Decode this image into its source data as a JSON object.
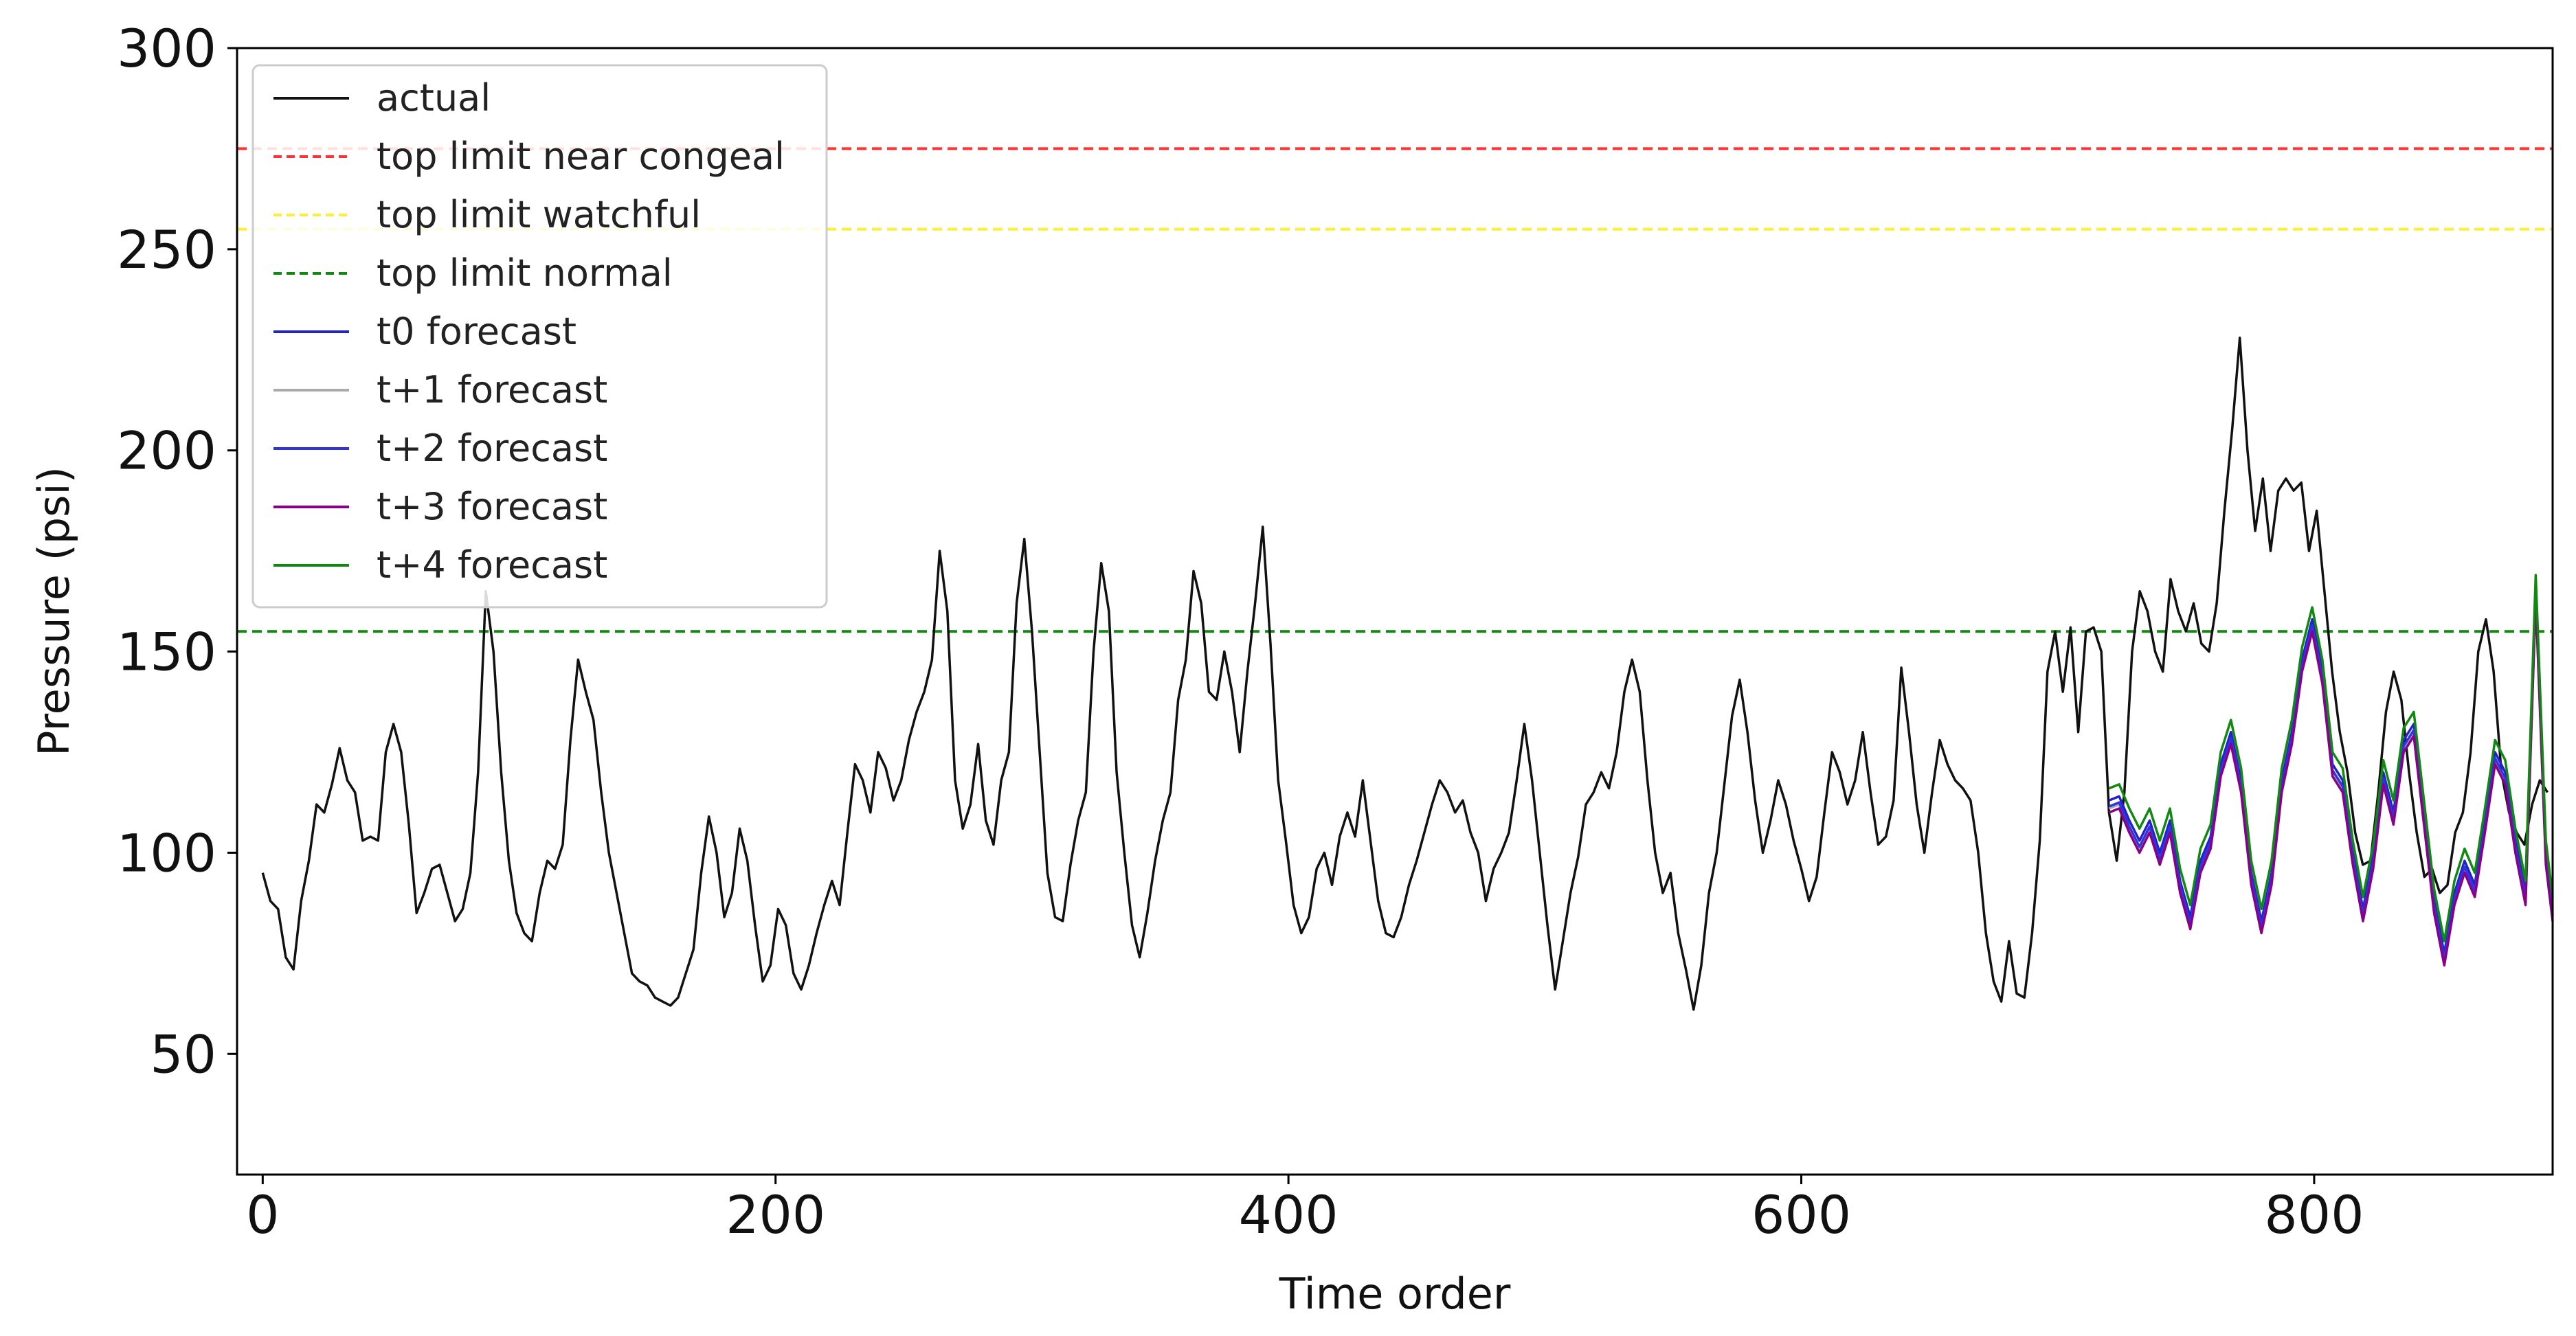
{
  "chart_data": {
    "type": "line",
    "xlabel": "Time order",
    "ylabel": "Pressure (psi)",
    "xlim": [
      -10,
      893
    ],
    "ylim": [
      20,
      300
    ],
    "x_ticks": [
      0,
      200,
      400,
      600,
      800
    ],
    "y_ticks": [
      50,
      100,
      150,
      200,
      250,
      300
    ],
    "grid": false,
    "legend_position": "top-left",
    "thresholds": [
      {
        "name": "top limit near congeal",
        "value": 275,
        "color": "#ff3333",
        "dash": true
      },
      {
        "name": "top limit watchful",
        "value": 255,
        "color": "#ffee33",
        "dash": true
      },
      {
        "name": "top limit normal",
        "value": 155,
        "color": "#118811",
        "dash": true
      }
    ],
    "actual": {
      "name": "actual",
      "color": "#111111",
      "points": [
        [
          0,
          95
        ],
        [
          3,
          88
        ],
        [
          6,
          86
        ],
        [
          9,
          74
        ],
        [
          12,
          71
        ],
        [
          15,
          88
        ],
        [
          18,
          98
        ],
        [
          21,
          112
        ],
        [
          24,
          110
        ],
        [
          27,
          117
        ],
        [
          30,
          126
        ],
        [
          33,
          118
        ],
        [
          36,
          115
        ],
        [
          39,
          103
        ],
        [
          42,
          104
        ],
        [
          45,
          103
        ],
        [
          48,
          125
        ],
        [
          51,
          132
        ],
        [
          54,
          125
        ],
        [
          57,
          107
        ],
        [
          60,
          85
        ],
        [
          63,
          90
        ],
        [
          66,
          96
        ],
        [
          69,
          97
        ],
        [
          72,
          90
        ],
        [
          75,
          83
        ],
        [
          78,
          86
        ],
        [
          81,
          95
        ],
        [
          84,
          120
        ],
        [
          87,
          165
        ],
        [
          90,
          150
        ],
        [
          93,
          120
        ],
        [
          96,
          98
        ],
        [
          99,
          85
        ],
        [
          102,
          80
        ],
        [
          105,
          78
        ],
        [
          108,
          90
        ],
        [
          111,
          98
        ],
        [
          114,
          96
        ],
        [
          117,
          102
        ],
        [
          120,
          128
        ],
        [
          123,
          148
        ],
        [
          126,
          140
        ],
        [
          129,
          133
        ],
        [
          132,
          115
        ],
        [
          135,
          100
        ],
        [
          138,
          90
        ],
        [
          141,
          80
        ],
        [
          144,
          70
        ],
        [
          147,
          68
        ],
        [
          150,
          67
        ],
        [
          153,
          64
        ],
        [
          156,
          63
        ],
        [
          159,
          62
        ],
        [
          162,
          64
        ],
        [
          165,
          70
        ],
        [
          168,
          76
        ],
        [
          171,
          95
        ],
        [
          174,
          109
        ],
        [
          177,
          100
        ],
        [
          180,
          84
        ],
        [
          183,
          90
        ],
        [
          186,
          106
        ],
        [
          189,
          98
        ],
        [
          192,
          82
        ],
        [
          195,
          68
        ],
        [
          198,
          72
        ],
        [
          201,
          86
        ],
        [
          204,
          82
        ],
        [
          207,
          70
        ],
        [
          210,
          66
        ],
        [
          213,
          72
        ],
        [
          216,
          80
        ],
        [
          219,
          87
        ],
        [
          222,
          93
        ],
        [
          225,
          87
        ],
        [
          228,
          105
        ],
        [
          231,
          122
        ],
        [
          234,
          118
        ],
        [
          237,
          110
        ],
        [
          240,
          125
        ],
        [
          243,
          121
        ],
        [
          246,
          113
        ],
        [
          249,
          118
        ],
        [
          252,
          128
        ],
        [
          255,
          135
        ],
        [
          258,
          140
        ],
        [
          261,
          148
        ],
        [
          264,
          175
        ],
        [
          267,
          160
        ],
        [
          270,
          118
        ],
        [
          273,
          106
        ],
        [
          276,
          112
        ],
        [
          279,
          127
        ],
        [
          282,
          108
        ],
        [
          285,
          102
        ],
        [
          288,
          118
        ],
        [
          291,
          125
        ],
        [
          294,
          162
        ],
        [
          297,
          178
        ],
        [
          300,
          155
        ],
        [
          303,
          125
        ],
        [
          306,
          95
        ],
        [
          309,
          84
        ],
        [
          312,
          83
        ],
        [
          315,
          97
        ],
        [
          318,
          108
        ],
        [
          321,
          115
        ],
        [
          324,
          150
        ],
        [
          327,
          172
        ],
        [
          330,
          160
        ],
        [
          333,
          120
        ],
        [
          336,
          100
        ],
        [
          339,
          82
        ],
        [
          342,
          74
        ],
        [
          345,
          85
        ],
        [
          348,
          98
        ],
        [
          351,
          108
        ],
        [
          354,
          115
        ],
        [
          357,
          138
        ],
        [
          360,
          148
        ],
        [
          363,
          170
        ],
        [
          366,
          162
        ],
        [
          369,
          140
        ],
        [
          372,
          138
        ],
        [
          375,
          150
        ],
        [
          378,
          140
        ],
        [
          381,
          125
        ],
        [
          384,
          145
        ],
        [
          387,
          162
        ],
        [
          390,
          181
        ],
        [
          393,
          152
        ],
        [
          396,
          118
        ],
        [
          399,
          103
        ],
        [
          402,
          87
        ],
        [
          405,
          80
        ],
        [
          408,
          84
        ],
        [
          411,
          96
        ],
        [
          414,
          100
        ],
        [
          417,
          92
        ],
        [
          420,
          104
        ],
        [
          423,
          110
        ],
        [
          426,
          104
        ],
        [
          429,
          118
        ],
        [
          432,
          103
        ],
        [
          435,
          88
        ],
        [
          438,
          80
        ],
        [
          441,
          79
        ],
        [
          444,
          84
        ],
        [
          447,
          92
        ],
        [
          450,
          98
        ],
        [
          453,
          105
        ],
        [
          456,
          112
        ],
        [
          459,
          118
        ],
        [
          462,
          115
        ],
        [
          465,
          110
        ],
        [
          468,
          113
        ],
        [
          471,
          105
        ],
        [
          474,
          100
        ],
        [
          477,
          88
        ],
        [
          480,
          96
        ],
        [
          483,
          100
        ],
        [
          486,
          105
        ],
        [
          489,
          118
        ],
        [
          492,
          132
        ],
        [
          495,
          118
        ],
        [
          498,
          100
        ],
        [
          501,
          82
        ],
        [
          504,
          66
        ],
        [
          507,
          78
        ],
        [
          510,
          90
        ],
        [
          513,
          99
        ],
        [
          516,
          112
        ],
        [
          519,
          115
        ],
        [
          522,
          120
        ],
        [
          525,
          116
        ],
        [
          528,
          125
        ],
        [
          531,
          140
        ],
        [
          534,
          148
        ],
        [
          537,
          140
        ],
        [
          540,
          118
        ],
        [
          543,
          100
        ],
        [
          546,
          90
        ],
        [
          549,
          95
        ],
        [
          552,
          80
        ],
        [
          555,
          71
        ],
        [
          558,
          61
        ],
        [
          561,
          72
        ],
        [
          564,
          90
        ],
        [
          567,
          100
        ],
        [
          570,
          117
        ],
        [
          573,
          134
        ],
        [
          576,
          143
        ],
        [
          579,
          130
        ],
        [
          582,
          113
        ],
        [
          585,
          100
        ],
        [
          588,
          108
        ],
        [
          591,
          118
        ],
        [
          594,
          112
        ],
        [
          597,
          103
        ],
        [
          600,
          96
        ],
        [
          603,
          88
        ],
        [
          606,
          94
        ],
        [
          609,
          110
        ],
        [
          612,
          125
        ],
        [
          615,
          120
        ],
        [
          618,
          112
        ],
        [
          621,
          118
        ],
        [
          624,
          130
        ],
        [
          627,
          115
        ],
        [
          630,
          102
        ],
        [
          633,
          104
        ],
        [
          636,
          113
        ],
        [
          639,
          146
        ],
        [
          642,
          130
        ],
        [
          645,
          112
        ],
        [
          648,
          100
        ],
        [
          651,
          115
        ],
        [
          654,
          128
        ],
        [
          657,
          122
        ],
        [
          660,
          118
        ],
        [
          663,
          116
        ],
        [
          666,
          113
        ],
        [
          669,
          100
        ],
        [
          672,
          80
        ],
        [
          675,
          68
        ],
        [
          678,
          63
        ],
        [
          681,
          78
        ],
        [
          684,
          65
        ],
        [
          687,
          64
        ],
        [
          690,
          80
        ],
        [
          693,
          103
        ],
        [
          696,
          145
        ],
        [
          699,
          155
        ],
        [
          702,
          140
        ],
        [
          705,
          156
        ],
        [
          708,
          130
        ],
        [
          711,
          155
        ],
        [
          714,
          156
        ],
        [
          717,
          150
        ],
        [
          720,
          110
        ],
        [
          723,
          98
        ],
        [
          726,
          115
        ],
        [
          729,
          150
        ],
        [
          732,
          165
        ],
        [
          735,
          160
        ],
        [
          738,
          150
        ],
        [
          741,
          145
        ],
        [
          744,
          168
        ],
        [
          747,
          160
        ],
        [
          750,
          155
        ],
        [
          753,
          162
        ],
        [
          756,
          152
        ],
        [
          759,
          150
        ],
        [
          762,
          162
        ],
        [
          765,
          185
        ],
        [
          768,
          205
        ],
        [
          771,
          228
        ],
        [
          774,
          200
        ],
        [
          777,
          180
        ],
        [
          780,
          193
        ],
        [
          783,
          175
        ],
        [
          786,
          190
        ],
        [
          789,
          193
        ],
        [
          792,
          190
        ],
        [
          795,
          192
        ],
        [
          798,
          175
        ],
        [
          801,
          185
        ],
        [
          804,
          165
        ],
        [
          807,
          145
        ],
        [
          810,
          130
        ],
        [
          813,
          120
        ],
        [
          816,
          105
        ],
        [
          819,
          97
        ],
        [
          822,
          98
        ],
        [
          825,
          115
        ],
        [
          828,
          135
        ],
        [
          831,
          145
        ],
        [
          834,
          138
        ],
        [
          837,
          120
        ],
        [
          840,
          105
        ],
        [
          843,
          94
        ],
        [
          846,
          96
        ],
        [
          849,
          90
        ],
        [
          852,
          92
        ],
        [
          855,
          105
        ],
        [
          858,
          110
        ],
        [
          861,
          125
        ],
        [
          864,
          150
        ],
        [
          867,
          158
        ],
        [
          870,
          145
        ],
        [
          873,
          120
        ],
        [
          876,
          110
        ],
        [
          879,
          105
        ],
        [
          882,
          102
        ],
        [
          885,
          112
        ],
        [
          888,
          118
        ],
        [
          891,
          115
        ]
      ]
    },
    "forecasts": [
      {
        "name": "t0 forecast",
        "color": "#2222cc"
      },
      {
        "name": "t+1 forecast",
        "color": "#aaaaaa"
      },
      {
        "name": "t+2 forecast",
        "color": "#3333dd"
      },
      {
        "name": "t+3 forecast",
        "color": "#880088"
      },
      {
        "name": "t+4 forecast",
        "color": "#118811"
      }
    ],
    "forecast_points": [
      [
        720,
        113
      ],
      [
        726,
        114
      ],
      [
        732,
        108
      ],
      [
        738,
        103
      ],
      [
        744,
        108
      ],
      [
        750,
        100
      ],
      [
        756,
        108
      ],
      [
        762,
        93
      ],
      [
        768,
        84
      ],
      [
        774,
        98
      ],
      [
        780,
        104
      ],
      [
        786,
        122
      ],
      [
        792,
        130
      ],
      [
        798,
        118
      ],
      [
        804,
        95
      ],
      [
        810,
        83
      ],
      [
        816,
        95
      ],
      [
        822,
        118
      ],
      [
        828,
        130
      ],
      [
        834,
        148
      ],
      [
        840,
        158
      ],
      [
        846,
        145
      ],
      [
        852,
        122
      ],
      [
        858,
        118
      ],
      [
        864,
        100
      ],
      [
        870,
        86
      ],
      [
        876,
        99
      ],
      [
        882,
        120
      ],
      [
        888,
        110
      ],
      [
        894,
        128
      ],
      [
        900,
        132
      ],
      [
        906,
        110
      ],
      [
        912,
        88
      ],
      [
        918,
        75
      ],
      [
        924,
        90
      ],
      [
        930,
        98
      ],
      [
        936,
        92
      ],
      [
        942,
        108
      ],
      [
        948,
        125
      ],
      [
        954,
        120
      ],
      [
        960,
        103
      ],
      [
        966,
        90
      ],
      [
        972,
        166
      ],
      [
        978,
        100
      ],
      [
        982,
        86
      ]
    ],
    "forecast_offsets": [
      0,
      -2,
      -1.5,
      -3,
      3
    ],
    "xscale_end": 893
  }
}
